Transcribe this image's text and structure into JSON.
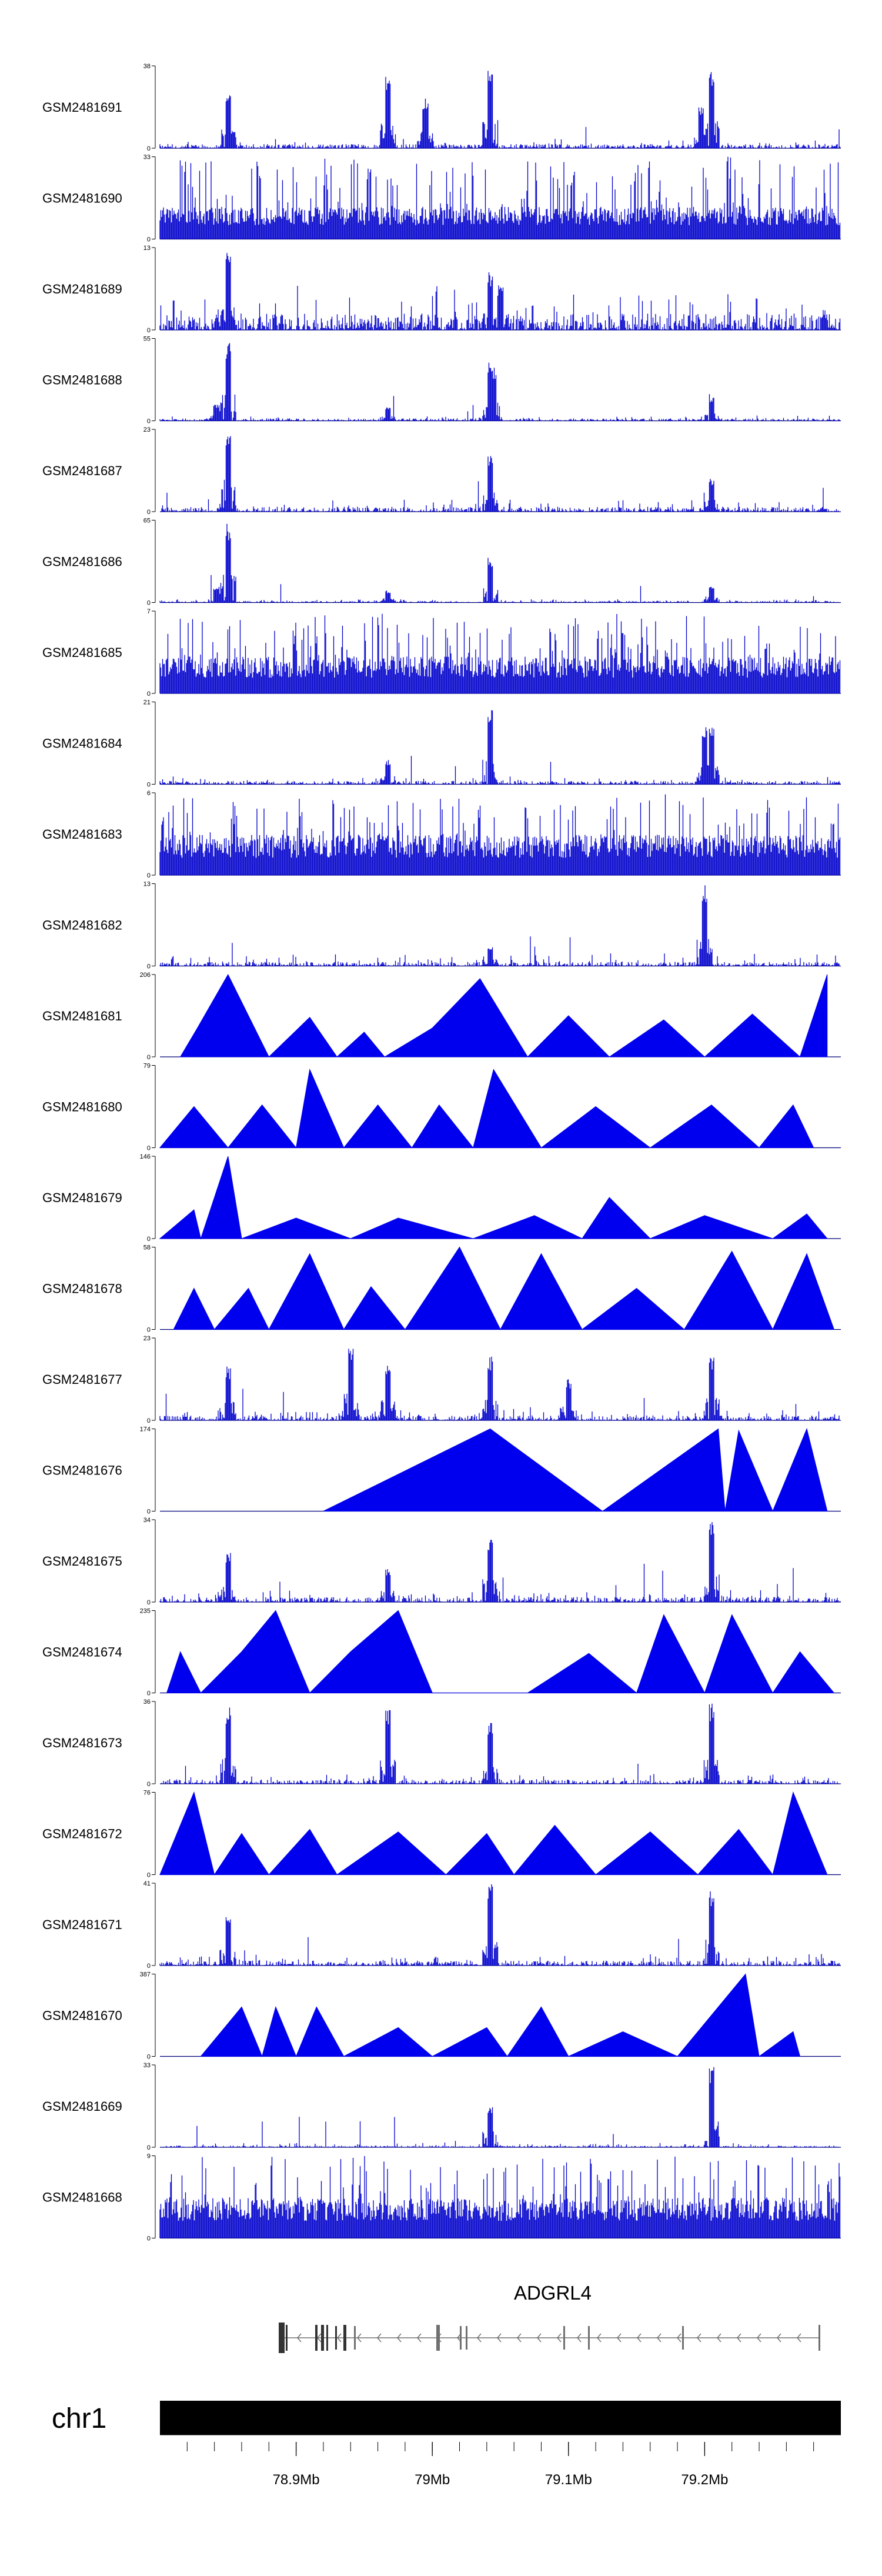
{
  "chart_data": {
    "type": "area",
    "title": "",
    "tracks": [
      {
        "sample": "GSM2481691",
        "ymax": "38",
        "ymin": "0",
        "style": "dense",
        "base": 0.05,
        "noise": 0.07,
        "peaks": [
          [
            0.1,
            0.66
          ],
          [
            0.335,
            0.9
          ],
          [
            0.39,
            0.62
          ],
          [
            0.485,
            0.98
          ],
          [
            0.81,
            1.0
          ],
          [
            0.795,
            0.5
          ]
        ]
      },
      {
        "sample": "GSM2481690",
        "ymax": "33",
        "ymin": "0",
        "style": "comb",
        "base": 0.28,
        "noise": 0.7,
        "peaks": []
      },
      {
        "sample": "GSM2481689",
        "ymax": "13",
        "ymin": "0",
        "style": "dense",
        "base": 0.2,
        "noise": 0.35,
        "peaks": [
          [
            0.1,
            0.98
          ],
          [
            0.485,
            0.7
          ],
          [
            0.5,
            0.55
          ]
        ]
      },
      {
        "sample": "GSM2481688",
        "ymax": "55",
        "ymin": "0",
        "style": "dense",
        "base": 0.03,
        "noise": 0.04,
        "peaks": [
          [
            0.1,
            1.0
          ],
          [
            0.083,
            0.2
          ],
          [
            0.335,
            0.18
          ],
          [
            0.485,
            0.72
          ],
          [
            0.49,
            0.65
          ],
          [
            0.81,
            0.28
          ]
        ]
      },
      {
        "sample": "GSM2481687",
        "ymax": "23",
        "ymin": "0",
        "style": "dense",
        "base": 0.06,
        "noise": 0.12,
        "peaks": [
          [
            0.1,
            0.98
          ],
          [
            0.485,
            0.72
          ],
          [
            0.81,
            0.4
          ]
        ]
      },
      {
        "sample": "GSM2481686",
        "ymax": "65",
        "ymin": "0",
        "style": "dense",
        "base": 0.02,
        "noise": 0.03,
        "peaks": [
          [
            0.1,
            1.0
          ],
          [
            0.083,
            0.2
          ],
          [
            0.335,
            0.15
          ],
          [
            0.485,
            0.55
          ],
          [
            0.81,
            0.2
          ]
        ]
      },
      {
        "sample": "GSM2481685",
        "ymax": "7",
        "ymin": "0",
        "style": "comb",
        "base": 0.32,
        "noise": 0.65,
        "peaks": []
      },
      {
        "sample": "GSM2481684",
        "ymax": "21",
        "ymin": "0",
        "style": "dense",
        "base": 0.04,
        "noise": 0.06,
        "peaks": [
          [
            0.485,
            1.0
          ],
          [
            0.335,
            0.3
          ],
          [
            0.8,
            0.72
          ],
          [
            0.81,
            0.7
          ]
        ]
      },
      {
        "sample": "GSM2481683",
        "ymax": "6",
        "ymin": "0",
        "style": "comb",
        "base": 0.35,
        "noise": 0.6,
        "peaks": []
      },
      {
        "sample": "GSM2481682",
        "ymax": "13",
        "ymin": "0",
        "style": "dense",
        "base": 0.05,
        "noise": 0.12,
        "peaks": [
          [
            0.8,
            1.0
          ],
          [
            0.485,
            0.25
          ]
        ]
      },
      {
        "sample": "GSM2481681",
        "ymax": "206",
        "ymin": "0",
        "style": "tri",
        "pts": [
          [
            0.03,
            0
          ],
          [
            0.055,
            0.35
          ],
          [
            0.1,
            1.0
          ],
          [
            0.16,
            0
          ],
          [
            0.22,
            0.48
          ],
          [
            0.26,
            0
          ],
          [
            0.3,
            0.3
          ],
          [
            0.33,
            0
          ],
          [
            0.4,
            0.35
          ],
          [
            0.47,
            0.95
          ],
          [
            0.54,
            0
          ],
          [
            0.6,
            0.5
          ],
          [
            0.66,
            0
          ],
          [
            0.74,
            0.45
          ],
          [
            0.8,
            0
          ],
          [
            0.87,
            0.52
          ],
          [
            0.94,
            0
          ],
          [
            0.98,
            1.0
          ],
          [
            0.98,
            0
          ]
        ]
      },
      {
        "sample": "GSM2481680",
        "ymax": "79",
        "ymin": "0",
        "style": "tri",
        "pts": [
          [
            0,
            0
          ],
          [
            0.05,
            0.5
          ],
          [
            0.1,
            0
          ],
          [
            0.15,
            0.52
          ],
          [
            0.2,
            0
          ],
          [
            0.22,
            0.95
          ],
          [
            0.27,
            0
          ],
          [
            0.32,
            0.52
          ],
          [
            0.37,
            0
          ],
          [
            0.41,
            0.52
          ],
          [
            0.46,
            0
          ],
          [
            0.49,
            0.95
          ],
          [
            0.56,
            0
          ],
          [
            0.64,
            0.5
          ],
          [
            0.72,
            0
          ],
          [
            0.81,
            0.52
          ],
          [
            0.88,
            0
          ],
          [
            0.93,
            0.52
          ],
          [
            0.96,
            0
          ]
        ]
      },
      {
        "sample": "GSM2481679",
        "ymax": "146",
        "ymin": "0",
        "style": "tri",
        "pts": [
          [
            0,
            0
          ],
          [
            0.05,
            0.35
          ],
          [
            0.06,
            0
          ],
          [
            0.1,
            1.0
          ],
          [
            0.12,
            0
          ],
          [
            0.2,
            0.25
          ],
          [
            0.28,
            0
          ],
          [
            0.35,
            0.25
          ],
          [
            0.46,
            0
          ],
          [
            0.55,
            0.28
          ],
          [
            0.62,
            0
          ],
          [
            0.66,
            0.5
          ],
          [
            0.72,
            0
          ],
          [
            0.8,
            0.28
          ],
          [
            0.9,
            0
          ],
          [
            0.95,
            0.3
          ],
          [
            0.98,
            0
          ]
        ]
      },
      {
        "sample": "GSM2481678",
        "ymax": "58",
        "ymin": "0",
        "style": "tri",
        "pts": [
          [
            0.02,
            0
          ],
          [
            0.05,
            0.5
          ],
          [
            0.08,
            0
          ],
          [
            0.13,
            0.5
          ],
          [
            0.16,
            0
          ],
          [
            0.22,
            0.92
          ],
          [
            0.27,
            0
          ],
          [
            0.31,
            0.52
          ],
          [
            0.36,
            0
          ],
          [
            0.44,
            1.0
          ],
          [
            0.5,
            0
          ],
          [
            0.56,
            0.92
          ],
          [
            0.62,
            0
          ],
          [
            0.7,
            0.5
          ],
          [
            0.77,
            0
          ],
          [
            0.84,
            0.95
          ],
          [
            0.9,
            0
          ],
          [
            0.95,
            0.92
          ],
          [
            0.99,
            0
          ]
        ]
      },
      {
        "sample": "GSM2481677",
        "ymax": "23",
        "ymin": "0",
        "style": "dense",
        "base": 0.06,
        "noise": 0.1,
        "peaks": [
          [
            0.1,
            0.66
          ],
          [
            0.28,
            0.95
          ],
          [
            0.335,
            0.7
          ],
          [
            0.485,
            0.78
          ],
          [
            0.81,
            0.78
          ],
          [
            0.6,
            0.5
          ]
        ]
      },
      {
        "sample": "GSM2481676",
        "ymax": "174",
        "ymin": "0",
        "style": "tri",
        "pts": [
          [
            0.24,
            0
          ],
          [
            0.485,
            1.0
          ],
          [
            0.65,
            0
          ],
          [
            0.82,
            1.0
          ],
          [
            0.83,
            0
          ],
          [
            0.85,
            0.98
          ],
          [
            0.9,
            0
          ],
          [
            0.95,
            1.0
          ],
          [
            0.98,
            0
          ]
        ]
      },
      {
        "sample": "GSM2481675",
        "ymax": "34",
        "ymin": "0",
        "style": "dense",
        "base": 0.06,
        "noise": 0.1,
        "peaks": [
          [
            0.1,
            0.6
          ],
          [
            0.485,
            0.8
          ],
          [
            0.81,
            0.98
          ],
          [
            0.335,
            0.4
          ]
        ]
      },
      {
        "sample": "GSM2481674",
        "ymax": "235",
        "ymin": "0",
        "style": "tri",
        "pts": [
          [
            0.01,
            0
          ],
          [
            0.03,
            0.5
          ],
          [
            0.06,
            0
          ],
          [
            0.12,
            0.5
          ],
          [
            0.17,
            1.0
          ],
          [
            0.22,
            0
          ],
          [
            0.28,
            0.5
          ],
          [
            0.35,
            1.0
          ],
          [
            0.4,
            0
          ],
          [
            0.54,
            0
          ],
          [
            0.63,
            0.48
          ],
          [
            0.7,
            0
          ],
          [
            0.74,
            0.95
          ],
          [
            0.8,
            0
          ],
          [
            0.84,
            0.95
          ],
          [
            0.9,
            0
          ],
          [
            0.94,
            0.5
          ],
          [
            0.99,
            0
          ]
        ]
      },
      {
        "sample": "GSM2481673",
        "ymax": "36",
        "ymin": "0",
        "style": "dense",
        "base": 0.05,
        "noise": 0.08,
        "peaks": [
          [
            0.1,
            0.95
          ],
          [
            0.335,
            0.9
          ],
          [
            0.485,
            0.75
          ],
          [
            0.81,
            1.0
          ]
        ]
      },
      {
        "sample": "GSM2481672",
        "ymax": "76",
        "ymin": "0",
        "style": "tri",
        "pts": [
          [
            0,
            0
          ],
          [
            0.05,
            1.0
          ],
          [
            0.08,
            0
          ],
          [
            0.12,
            0.5
          ],
          [
            0.16,
            0
          ],
          [
            0.22,
            0.55
          ],
          [
            0.26,
            0
          ],
          [
            0.35,
            0.52
          ],
          [
            0.42,
            0
          ],
          [
            0.48,
            0.5
          ],
          [
            0.52,
            0
          ],
          [
            0.58,
            0.6
          ],
          [
            0.64,
            0
          ],
          [
            0.72,
            0.52
          ],
          [
            0.79,
            0
          ],
          [
            0.85,
            0.55
          ],
          [
            0.9,
            0
          ],
          [
            0.93,
            1.0
          ],
          [
            0.98,
            0
          ]
        ]
      },
      {
        "sample": "GSM2481671",
        "ymax": "41",
        "ymin": "0",
        "style": "dense",
        "base": 0.06,
        "noise": 0.1,
        "peaks": [
          [
            0.1,
            0.6
          ],
          [
            0.485,
            1.0
          ],
          [
            0.81,
            0.92
          ]
        ]
      },
      {
        "sample": "GSM2481670",
        "ymax": "387",
        "ymin": "0",
        "style": "tri",
        "pts": [
          [
            0.06,
            0
          ],
          [
            0.12,
            0.6
          ],
          [
            0.15,
            0
          ],
          [
            0.17,
            0.6
          ],
          [
            0.2,
            0
          ],
          [
            0.23,
            0.6
          ],
          [
            0.27,
            0
          ],
          [
            0.35,
            0.35
          ],
          [
            0.4,
            0
          ],
          [
            0.48,
            0.35
          ],
          [
            0.51,
            0
          ],
          [
            0.56,
            0.6
          ],
          [
            0.6,
            0
          ],
          [
            0.68,
            0.3
          ],
          [
            0.76,
            0
          ],
          [
            0.86,
            1.0
          ],
          [
            0.88,
            0
          ],
          [
            0.93,
            0.3
          ],
          [
            0.94,
            0
          ]
        ]
      },
      {
        "sample": "GSM2481669",
        "ymax": "33",
        "ymin": "0",
        "style": "dense",
        "base": 0.02,
        "noise": 0.04,
        "peaks": [
          [
            0.485,
            0.55
          ],
          [
            0.81,
            1.0
          ]
        ]
      },
      {
        "sample": "GSM2481668",
        "ymax": "9",
        "ymin": "0",
        "style": "comb",
        "base": 0.35,
        "noise": 0.65,
        "peaks": []
      }
    ],
    "gene": {
      "name": "ADGRL4"
    },
    "chromosome": "chr1",
    "xaxis": {
      "range_mb": [
        78.8,
        79.3
      ],
      "ticks": [
        {
          "value": 78.9,
          "label": "78.9Mb"
        },
        {
          "value": 79.0,
          "label": "79Mb"
        },
        {
          "value": 79.1,
          "label": "79.1Mb"
        },
        {
          "value": 79.2,
          "label": "79.2Mb"
        }
      ]
    },
    "colors": {
      "track": "#0000cc",
      "track_dark": "#00007a",
      "tri_fill": "#0000ee",
      "ideogram": "#000000",
      "gene": "#707070"
    }
  }
}
